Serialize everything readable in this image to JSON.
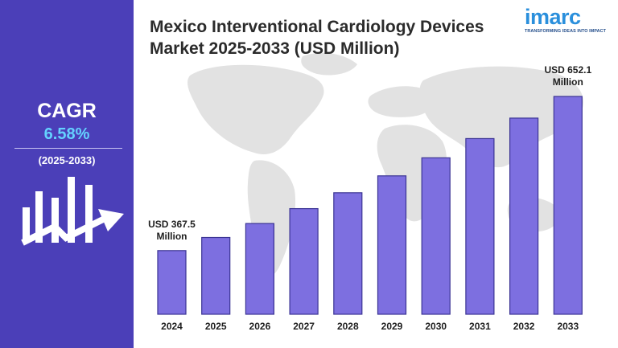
{
  "sidebar": {
    "cagr_label": "CAGR",
    "cagr_value": "6.58%",
    "cagr_period": "(2025-2033)"
  },
  "header": {
    "title": "Mexico Interventional Cardiology Devices Market 2025-2033 (USD Million)",
    "logo_text": "imarc",
    "logo_tagline": "TRANSFORMING IDEAS INTO IMPACT"
  },
  "colors": {
    "sidebar_bg": "#4b3fb8",
    "bar_fill": "#7d6fe0",
    "bar_stroke": "#3b3494",
    "accent": "#64d2ff",
    "logo": "#2a8fdc",
    "map": "#e2e2e2"
  },
  "icons": [
    "bar-growth-arrow-icon",
    "world-map-background"
  ],
  "chart_data": {
    "type": "bar",
    "title": "Mexico Interventional Cardiology Devices Market 2025-2033 (USD Million)",
    "xlabel": "",
    "ylabel": "",
    "categories": [
      "2024",
      "2025",
      "2026",
      "2027",
      "2028",
      "2029",
      "2030",
      "2031",
      "2032",
      "2033"
    ],
    "values": [
      367.5,
      391.7,
      417.5,
      445.0,
      474.3,
      505.5,
      538.8,
      574.3,
      612.1,
      652.1
    ],
    "ylim": [
      250,
      670
    ],
    "grid": false,
    "legend": "none",
    "annotations": [
      {
        "category": "2024",
        "line1": "USD 367.5",
        "line2": "Million"
      },
      {
        "category": "2033",
        "line1": "USD 652.1",
        "line2": "Million"
      }
    ]
  }
}
